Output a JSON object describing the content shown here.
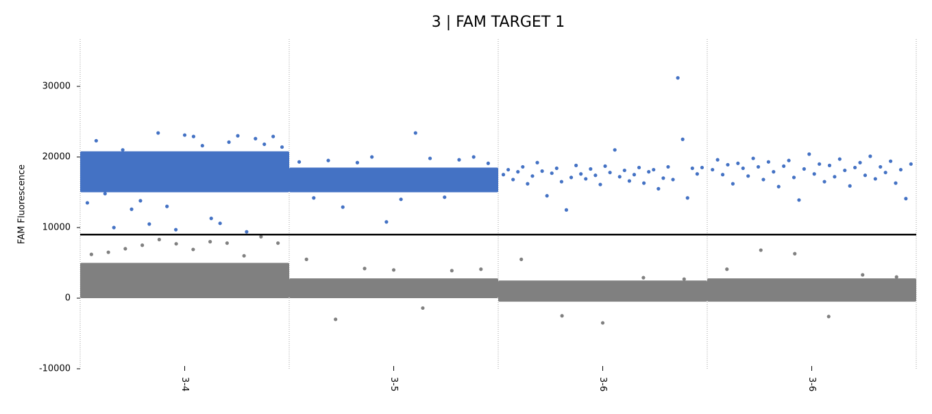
{
  "chart_data": {
    "type": "droplet_scatter",
    "title": "3 | FAM TARGET 1",
    "y_label": "FAM Fluorescence",
    "ylim": [
      -10000,
      36700
    ],
    "yticks": [
      -10000,
      0,
      10000,
      20000,
      30000
    ],
    "threshold": 9000,
    "colors": {
      "positive": "#4472c4",
      "negative": "#808080",
      "threshold": "#000000"
    },
    "wells": [
      {
        "label": "3-4",
        "positive": {
          "low": 15000,
          "high": 20800
        },
        "negative": {
          "low": 0,
          "high": 5000
        },
        "positive_events": [
          13500,
          22300,
          14800,
          10000,
          21000,
          12600,
          13800,
          10500,
          23400,
          13000,
          9700,
          23100,
          22900,
          21600,
          11300,
          10600,
          22100,
          23000,
          9400,
          22600,
          21800,
          22900,
          21400
        ],
        "negative_events": [
          6200,
          6500,
          7000,
          7500,
          8300,
          7700,
          6900,
          8000,
          7800,
          6000,
          8700,
          7800
        ]
      },
      {
        "label": "3-5",
        "positive": {
          "low": 15000,
          "high": 18500
        },
        "negative": {
          "low": 0,
          "high": 2800
        },
        "positive_events": [
          19300,
          14200,
          19500,
          12900,
          19200,
          20000,
          10800,
          14000,
          23400,
          19800,
          14300,
          19600,
          20000,
          19100
        ],
        "negative_events": [
          5500,
          -3000,
          4200,
          4000,
          -1400,
          3900,
          4100
        ]
      },
      {
        "label": "3-6",
        "positive": null,
        "negative": {
          "low": -500,
          "high": 2500
        },
        "positive_events": [
          17500,
          18200,
          16800,
          17900,
          18600,
          16200,
          17300,
          19200,
          18000,
          14500,
          17700,
          18400,
          16500,
          12500,
          17100,
          18800,
          17600,
          16900,
          18300,
          17400,
          16100,
          18700,
          17800,
          21000,
          17200,
          18100,
          16600,
          17500,
          18500,
          16300,
          17900,
          18200,
          15500,
          17000,
          18600,
          16800,
          31200,
          22500,
          14200,
          18400,
          17600,
          18500
        ],
        "negative_events": [
          5500,
          -2500,
          -3500,
          2900,
          2700
        ]
      },
      {
        "label": "3-6",
        "positive": null,
        "negative": {
          "low": -500,
          "high": 2800
        },
        "positive_events": [
          18200,
          19600,
          17500,
          18900,
          16200,
          19100,
          18400,
          17300,
          19800,
          18600,
          16800,
          19300,
          17900,
          15800,
          18700,
          19500,
          17100,
          13900,
          18300,
          20400,
          17600,
          19000,
          16500,
          18800,
          17200,
          19700,
          18100,
          15900,
          18500,
          19200,
          17400,
          20100,
          16900,
          18600,
          17800,
          19400,
          16300,
          18200,
          14100,
          19000
        ],
        "negative_events": [
          4100,
          6800,
          6300,
          -2600,
          3300,
          3000
        ]
      }
    ]
  }
}
